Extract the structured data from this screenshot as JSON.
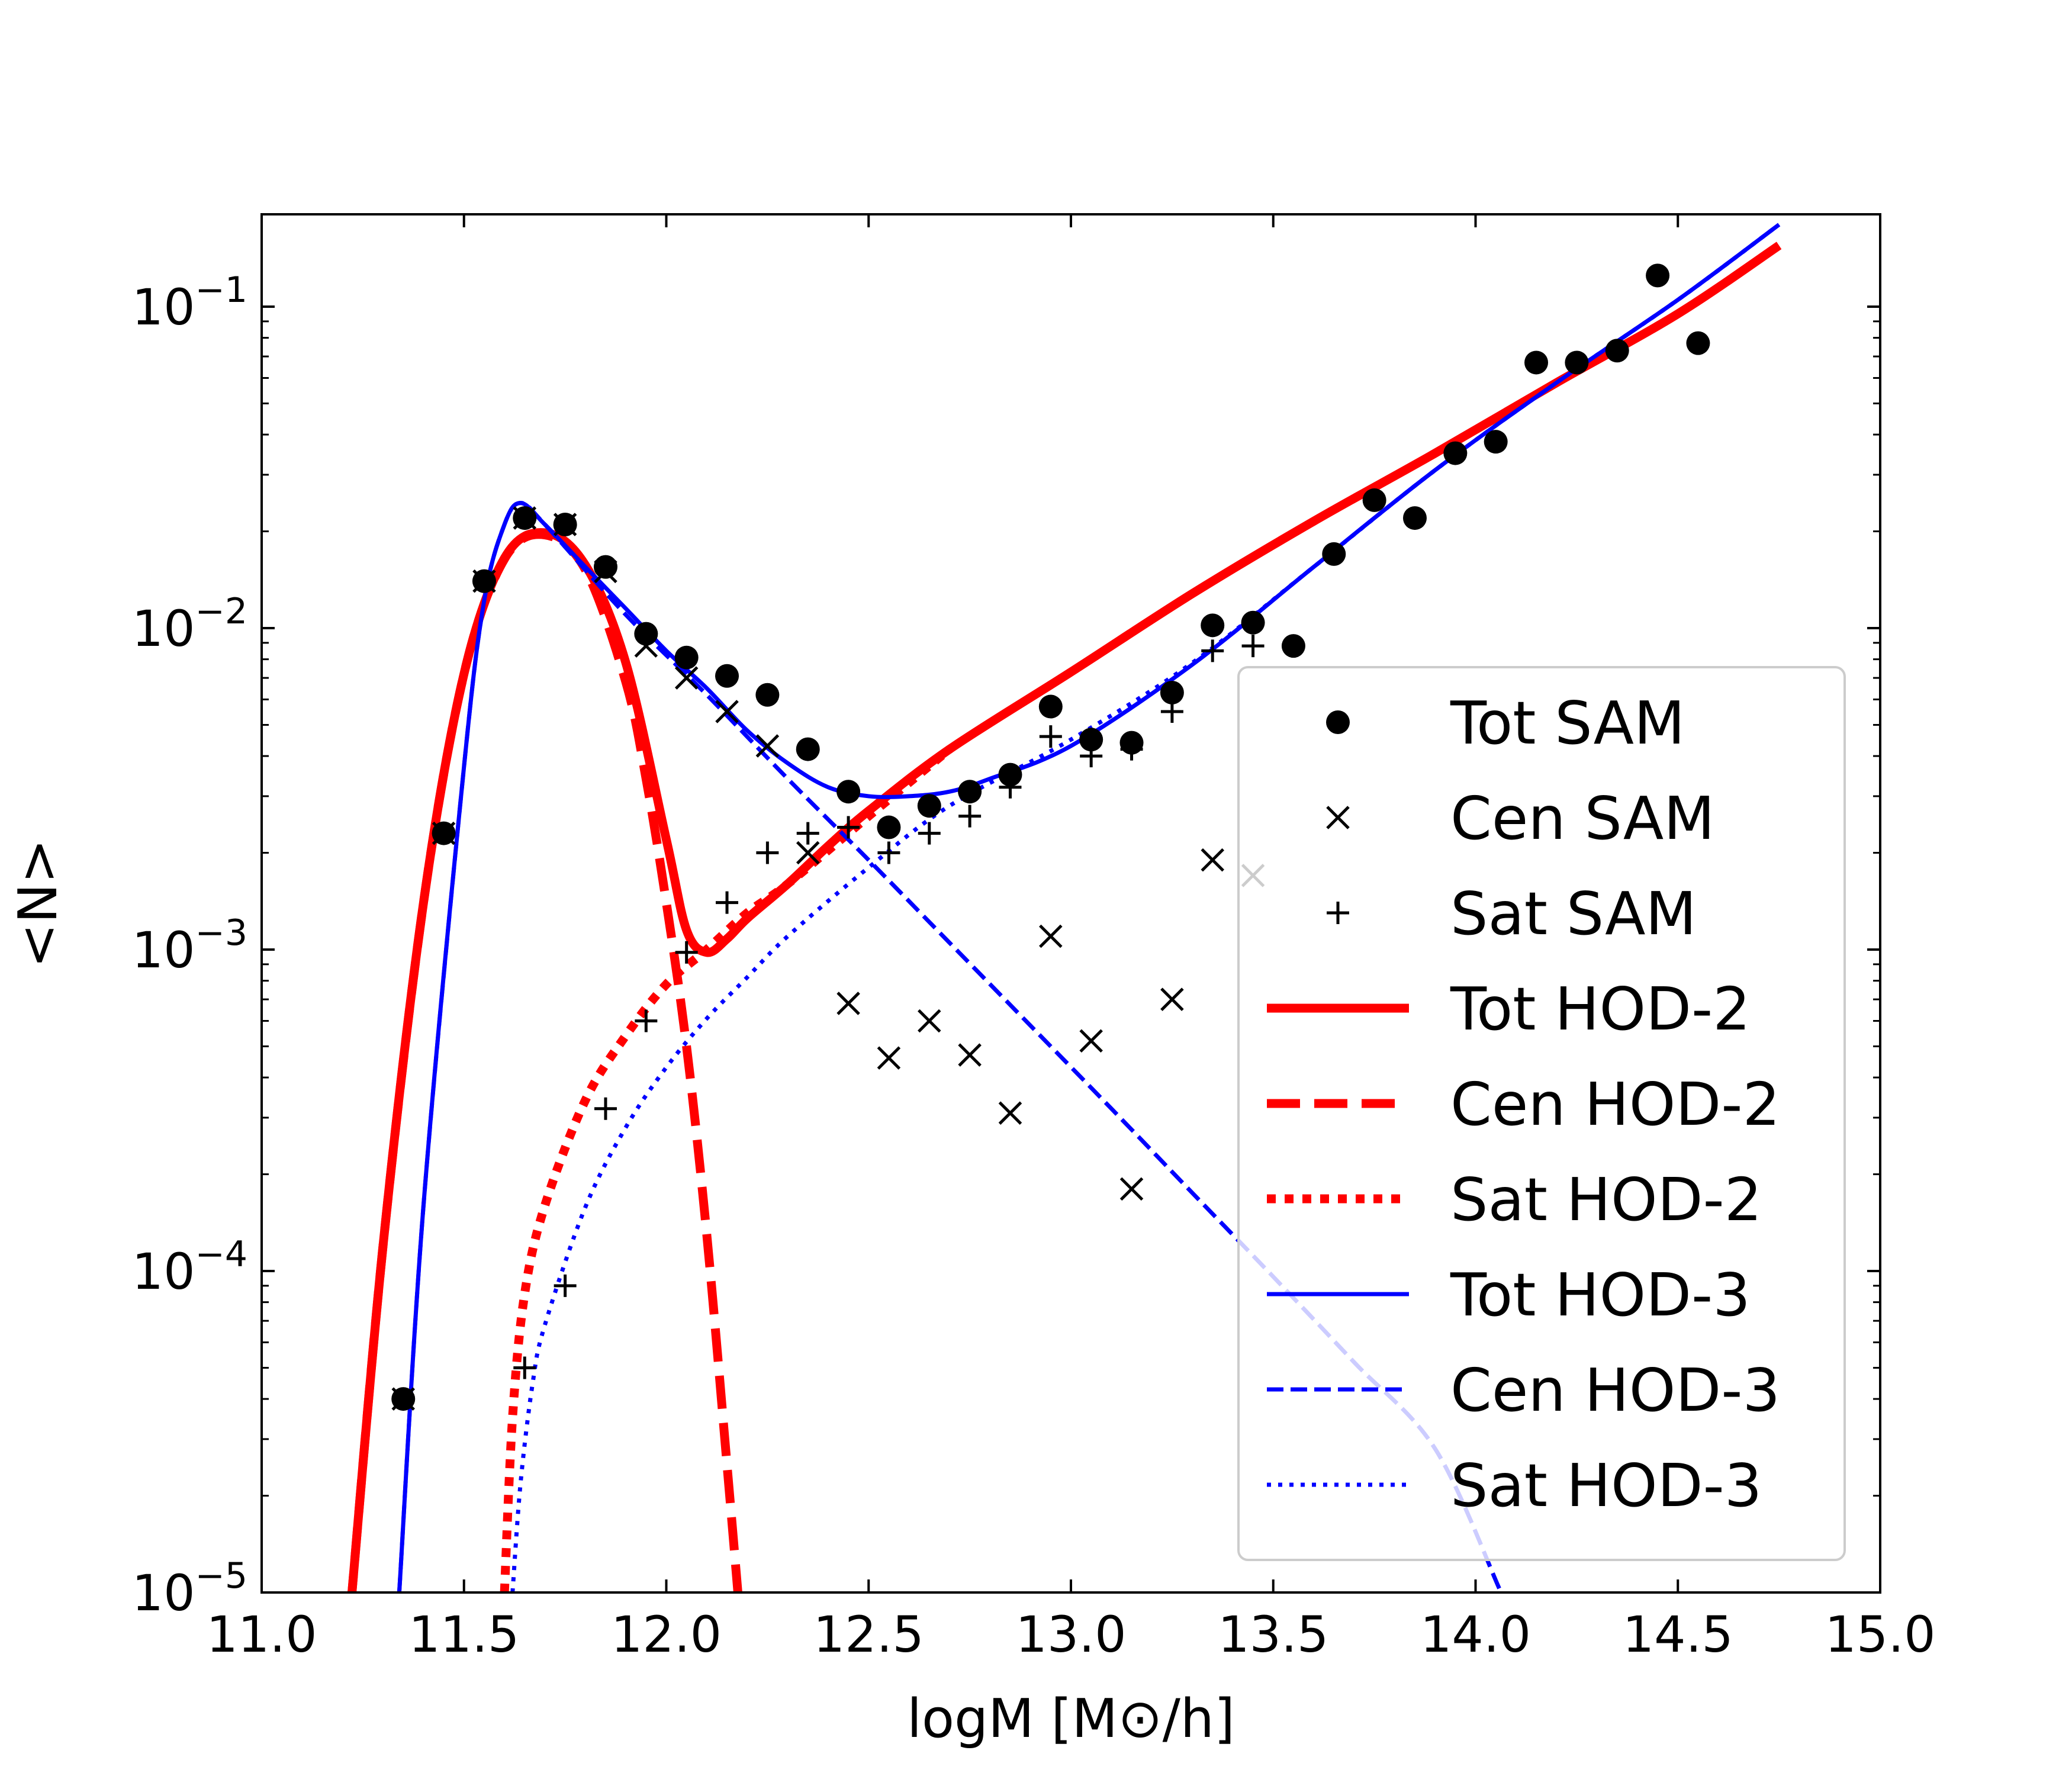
{
  "chart_data": {
    "type": "line",
    "title": "",
    "xlabel": "logM  [M⊙/h]",
    "ylabel": "<N>",
    "xlim": [
      11.0,
      15.0
    ],
    "ylim": [
      1e-05,
      0.2
    ],
    "yscale": "log",
    "xticks": [
      "11.0",
      "11.5",
      "12.0",
      "12.5",
      "13.0",
      "13.5",
      "14.0",
      "14.5",
      "15.0"
    ],
    "yticks": [
      {
        "value": 0.1,
        "base": "10",
        "exp": "−1"
      },
      {
        "value": 0.01,
        "base": "10",
        "exp": "−2"
      },
      {
        "value": 0.001,
        "base": "10",
        "exp": "−3"
      },
      {
        "value": 0.0001,
        "base": "10",
        "exp": "−4"
      },
      {
        "value": 1e-05,
        "base": "10",
        "exp": "−5"
      }
    ],
    "legend_position": "lower-right",
    "grid": false,
    "series": [
      {
        "name": "Tot SAM",
        "kind": "scatter",
        "marker": "circle",
        "color": "#000000",
        "x": [
          11.35,
          11.45,
          11.55,
          11.65,
          11.75,
          11.85,
          11.95,
          12.05,
          12.15,
          12.25,
          12.35,
          12.45,
          12.55,
          12.65,
          12.75,
          12.85,
          12.95,
          13.05,
          13.15,
          13.25,
          13.35,
          13.45,
          13.55,
          13.65,
          13.75,
          13.85,
          13.95,
          14.05,
          14.15,
          14.25,
          14.35,
          14.45,
          14.55
        ],
        "y": [
          4e-05,
          0.0023,
          0.014,
          0.022,
          0.021,
          0.0155,
          0.0096,
          0.0081,
          0.0071,
          0.0062,
          0.0042,
          0.0031,
          0.0024,
          0.0028,
          0.0031,
          0.0035,
          0.0057,
          0.0045,
          0.0044,
          0.0063,
          0.0102,
          0.0104,
          0.0088,
          0.017,
          0.025,
          0.022,
          0.035,
          0.038,
          0.067,
          0.067,
          0.073,
          0.125,
          0.077
        ]
      },
      {
        "name": "Cen SAM",
        "kind": "scatter",
        "marker": "x",
        "color": "#000000",
        "x": [
          11.35,
          11.45,
          11.55,
          11.65,
          11.75,
          11.85,
          11.95,
          12.05,
          12.15,
          12.25,
          12.35,
          12.45,
          12.55,
          12.65,
          12.75,
          12.85,
          12.95,
          13.05,
          13.15,
          13.25,
          13.35,
          13.45
        ],
        "y": [
          4e-05,
          0.0023,
          0.014,
          0.022,
          0.021,
          0.015,
          0.0088,
          0.007,
          0.0055,
          0.0043,
          0.002,
          0.00068,
          0.00046,
          0.0006,
          0.00047,
          0.00031,
          0.0011,
          0.00052,
          0.00018,
          0.0007,
          0.0019,
          0.0017
        ]
      },
      {
        "name": "Sat SAM",
        "kind": "scatter",
        "marker": "plus",
        "color": "#000000",
        "x": [
          11.65,
          11.75,
          11.85,
          11.95,
          12.05,
          12.15,
          12.25,
          12.35,
          12.45,
          12.55,
          12.65,
          12.75,
          12.85,
          12.95,
          13.05,
          13.15,
          13.25,
          13.35,
          13.45
        ],
        "y": [
          5e-05,
          9e-05,
          0.00032,
          0.0006,
          0.00098,
          0.0014,
          0.002,
          0.0023,
          0.0024,
          0.002,
          0.0023,
          0.0026,
          0.0032,
          0.0046,
          0.004,
          0.0042,
          0.0055,
          0.0085,
          0.0088
        ]
      },
      {
        "name": "Tot HOD-2",
        "kind": "line",
        "dash": "solid",
        "color": "#ff0000",
        "width": 15,
        "x": [
          11.22,
          11.3,
          11.4,
          11.5,
          11.6,
          11.7,
          11.8,
          11.9,
          12.0,
          12.05,
          12.1,
          12.15,
          12.2,
          12.3,
          12.4,
          12.5,
          12.7,
          13.0,
          13.3,
          13.6,
          13.9,
          14.2,
          14.5,
          14.75
        ],
        "y": [
          9e-06,
          0.00012,
          0.0014,
          0.0072,
          0.0165,
          0.0198,
          0.0157,
          0.0078,
          0.0022,
          0.00115,
          0.00098,
          0.00108,
          0.00125,
          0.0016,
          0.0021,
          0.0027,
          0.0042,
          0.0073,
          0.0128,
          0.0215,
          0.035,
          0.058,
          0.095,
          0.155
        ]
      },
      {
        "name": "Cen HOD-2",
        "kind": "line",
        "dash": "dashed",
        "color": "#ff0000",
        "width": 15,
        "x": [
          11.22,
          11.3,
          11.4,
          11.5,
          11.6,
          11.7,
          11.8,
          11.9,
          11.95,
          12.0,
          12.05,
          12.1,
          12.15,
          12.18
        ],
        "y": [
          9e-06,
          0.00012,
          0.0014,
          0.0072,
          0.0164,
          0.0195,
          0.0152,
          0.0068,
          0.0034,
          0.0014,
          0.0005,
          0.00013,
          2.5e-05,
          9e-06
        ]
      },
      {
        "name": "Sat HOD-2",
        "kind": "line",
        "dash": "dotted",
        "color": "#ff0000",
        "width": 15,
        "x": [
          11.6,
          11.62,
          11.65,
          11.7,
          11.8,
          11.9,
          12.0,
          12.1,
          12.2,
          12.3,
          12.5,
          12.7
        ],
        "y": [
          1e-05,
          3.5e-05,
          8.5e-05,
          0.00016,
          0.00034,
          0.00054,
          0.00078,
          0.001,
          0.0013,
          0.0016,
          0.0026,
          0.0042
        ]
      },
      {
        "name": "Tot HOD-3",
        "kind": "line",
        "dash": "solid",
        "color": "#0000ff",
        "width": 7,
        "x": [
          11.34,
          11.4,
          11.5,
          11.55,
          11.6,
          11.64,
          11.7,
          11.8,
          11.9,
          12.0,
          12.1,
          12.2,
          12.3,
          12.4,
          12.5,
          12.6,
          12.7,
          12.8,
          13.0,
          13.3,
          13.6,
          13.9,
          14.2,
          14.5,
          14.75
        ],
        "y": [
          1e-05,
          0.00016,
          0.0037,
          0.0122,
          0.021,
          0.0245,
          0.021,
          0.0155,
          0.0115,
          0.0085,
          0.0065,
          0.0048,
          0.0038,
          0.0032,
          0.003,
          0.003,
          0.0031,
          0.0034,
          0.0043,
          0.0077,
          0.0155,
          0.031,
          0.058,
          0.105,
          0.18
        ]
      },
      {
        "name": "Cen HOD-3",
        "kind": "line",
        "dash": "dashed",
        "color": "#0000ff",
        "width": 7,
        "x": [
          11.34,
          11.4,
          11.5,
          11.55,
          11.6,
          11.64,
          11.7,
          11.9,
          12.1,
          12.3,
          12.5,
          12.7,
          12.9,
          13.1,
          13.3,
          13.5,
          13.7,
          13.9,
          14.06
        ],
        "y": [
          1e-05,
          0.00016,
          0.0037,
          0.0122,
          0.021,
          0.0245,
          0.021,
          0.011,
          0.0062,
          0.0034,
          0.0019,
          0.00105,
          0.00058,
          0.00032,
          0.000175,
          9.6e-05,
          5.2e-05,
          2.8e-05,
          1.02e-05
        ]
      },
      {
        "name": "Sat HOD-3",
        "kind": "line",
        "dash": "dotted",
        "color": "#0000ff",
        "width": 7,
        "x": [
          11.62,
          11.64,
          11.67,
          11.7,
          11.8,
          11.9,
          12.0,
          12.1,
          12.2,
          12.3,
          12.5,
          12.7,
          13.0,
          13.3,
          13.6,
          13.9,
          14.2,
          14.5,
          14.75
        ],
        "y": [
          1e-05,
          2.2e-05,
          4.5e-05,
          6.8e-05,
          0.000158,
          0.00028,
          0.00043,
          0.00061,
          0.00082,
          0.0011,
          0.0018,
          0.0028,
          0.0045,
          0.0078,
          0.0155,
          0.031,
          0.058,
          0.105,
          0.18
        ]
      }
    ]
  }
}
